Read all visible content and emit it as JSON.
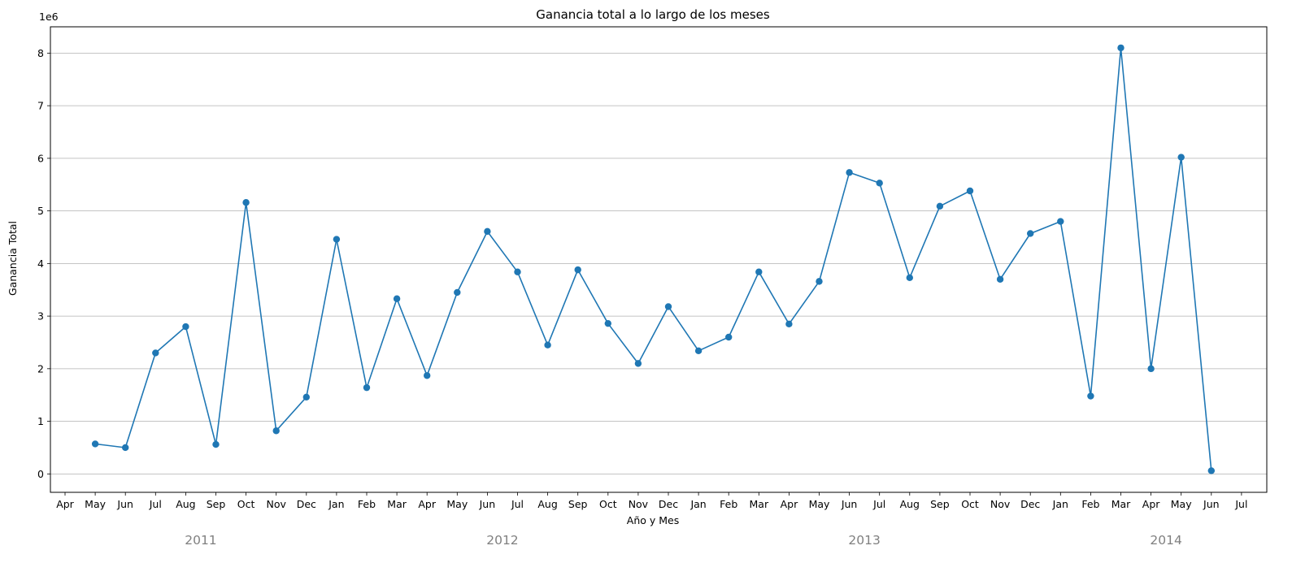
{
  "chart_data": {
    "type": "line",
    "title": "Ganancia total a lo largo de los meses",
    "xlabel": "Año y Mes",
    "ylabel": "Ganancia Total",
    "y_offset_label": "1e6",
    "y_scale": 1000000,
    "ylim": [
      -350000,
      8500000
    ],
    "yticks": [
      0,
      1,
      2,
      3,
      4,
      5,
      6,
      7,
      8
    ],
    "grid": "y",
    "color": "#1f77b4",
    "x_tick_labels": [
      "Apr",
      "May",
      "Jun",
      "Jul",
      "Aug",
      "Sep",
      "Oct",
      "Nov",
      "Dec",
      "Jan",
      "Feb",
      "Mar",
      "Apr",
      "May",
      "Jun",
      "Jul",
      "Aug",
      "Sep",
      "Oct",
      "Nov",
      "Dec",
      "Jan",
      "Feb",
      "Mar",
      "Apr",
      "May",
      "Jun",
      "Jul",
      "Aug",
      "Sep",
      "Oct",
      "Nov",
      "Dec",
      "Jan",
      "Feb",
      "Mar",
      "Apr",
      "May",
      "Jun",
      "Jul"
    ],
    "year_labels": [
      {
        "label": "2011",
        "center_tick": 4.5
      },
      {
        "label": "2012",
        "center_tick": 14.5
      },
      {
        "label": "2013",
        "center_tick": 26.5
      },
      {
        "label": "2014",
        "center_tick": 36.5
      }
    ],
    "series": [
      {
        "x": [
          "2011-05",
          "2011-06",
          "2011-07",
          "2011-08",
          "2011-09",
          "2011-10",
          "2011-11",
          "2011-12",
          "2012-01",
          "2012-02",
          "2012-03",
          "2012-04",
          "2012-05",
          "2012-06",
          "2012-07",
          "2012-08",
          "2012-09",
          "2012-10",
          "2012-11",
          "2012-12",
          "2013-01",
          "2013-02",
          "2013-03",
          "2013-04",
          "2013-05",
          "2013-06",
          "2013-07",
          "2013-08",
          "2013-09",
          "2013-10",
          "2013-11",
          "2013-12",
          "2014-01",
          "2014-02",
          "2014-03",
          "2014-04",
          "2014-05",
          "2014-06"
        ],
        "values": [
          570000,
          500000,
          2300000,
          2800000,
          560000,
          5160000,
          820000,
          1460000,
          4460000,
          1640000,
          3330000,
          1870000,
          3450000,
          4610000,
          3840000,
          2450000,
          3880000,
          2860000,
          2100000,
          3180000,
          2340000,
          2600000,
          3840000,
          2850000,
          3660000,
          5730000,
          5530000,
          3730000,
          5090000,
          5380000,
          3700000,
          4570000,
          4800000,
          1480000,
          8100000,
          2000000,
          6020000,
          60000
        ]
      }
    ]
  }
}
